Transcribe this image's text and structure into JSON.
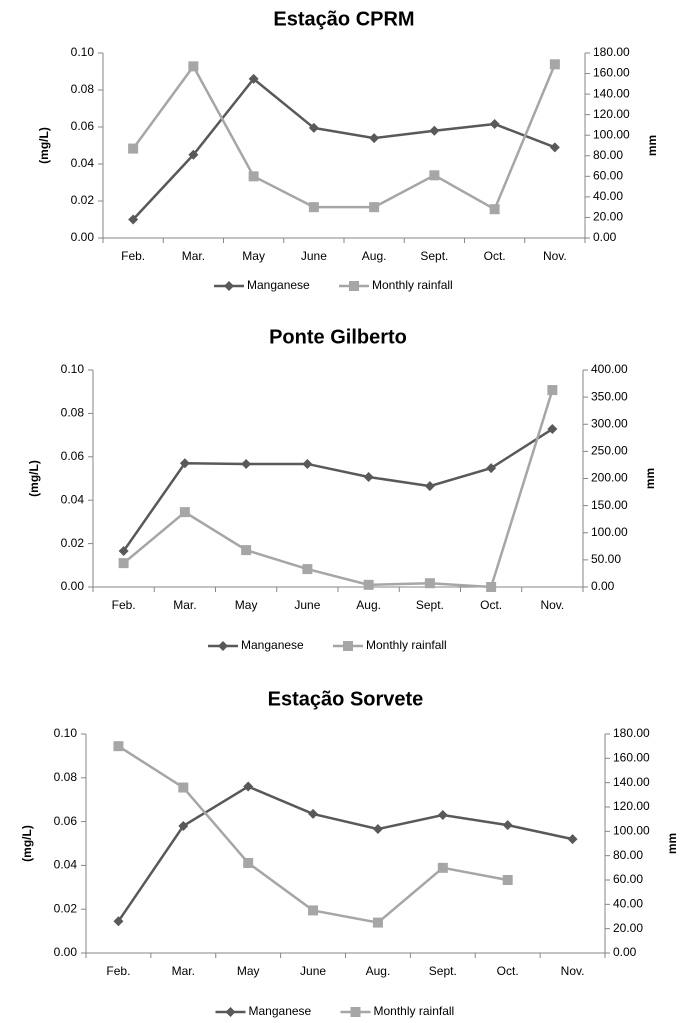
{
  "chart_data": [
    {
      "type": "line",
      "title": "Estação CPRM",
      "categories": [
        "Feb.",
        "Mar.",
        "May",
        "June",
        "Aug.",
        "Sept.",
        "Oct.",
        "Nov."
      ],
      "ylabel": "(mg/L)",
      "y2label": "mm",
      "ylim": [
        0,
        0.1
      ],
      "yticks": [
        {
          "value": 0,
          "label": "0.00"
        },
        {
          "value": 0.02,
          "label": "0.02"
        },
        {
          "value": 0.04,
          "label": "0.04"
        },
        {
          "value": 0.06,
          "label": "0.06"
        },
        {
          "value": 0.08,
          "label": "0.08"
        },
        {
          "value": 0.1,
          "label": "0.10"
        }
      ],
      "y2lim": [
        0,
        180
      ],
      "y2ticks": [
        {
          "value": 0,
          "label": "0.00"
        },
        {
          "value": 20,
          "label": "20.00"
        },
        {
          "value": 40,
          "label": "40.00"
        },
        {
          "value": 60,
          "label": "60.00"
        },
        {
          "value": 80,
          "label": "80.00"
        },
        {
          "value": 100,
          "label": "100.00"
        },
        {
          "value": 120,
          "label": "120.00"
        },
        {
          "value": 140,
          "label": "140.00"
        },
        {
          "value": 160,
          "label": "160.00"
        },
        {
          "value": 180,
          "label": "180.00"
        }
      ],
      "series": [
        {
          "name": "Manganese",
          "color": "#595959",
          "marker": "diamond",
          "axis": "y",
          "values": [
            0.01,
            0.045,
            0.086,
            0.0595,
            0.054,
            0.058,
            0.0616,
            0.049
          ]
        },
        {
          "name": "Monthly rainfall",
          "color": "#a6a6a6",
          "marker": "square",
          "axis": "y2",
          "values": [
            87,
            167,
            60,
            30,
            30,
            61,
            28,
            169
          ]
        }
      ]
    },
    {
      "type": "line",
      "title": "Ponte Gilberto",
      "categories": [
        "Feb.",
        "Mar.",
        "May",
        "June",
        "Aug.",
        "Sept.",
        "Oct.",
        "Nov."
      ],
      "ylabel": "(mg/L)",
      "y2label": "mm",
      "ylim": [
        0,
        0.1
      ],
      "yticks": [
        {
          "value": 0,
          "label": "0.00"
        },
        {
          "value": 0.02,
          "label": "0.02"
        },
        {
          "value": 0.04,
          "label": "0.04"
        },
        {
          "value": 0.06,
          "label": "0.06"
        },
        {
          "value": 0.08,
          "label": "0.08"
        },
        {
          "value": 0.1,
          "label": "0.10"
        }
      ],
      "y2lim": [
        0,
        400
      ],
      "y2ticks": [
        {
          "value": 0,
          "label": "0.00"
        },
        {
          "value": 50,
          "label": "50.00"
        },
        {
          "value": 100,
          "label": "100.00"
        },
        {
          "value": 150,
          "label": "150.00"
        },
        {
          "value": 200,
          "label": "200.00"
        },
        {
          "value": 250,
          "label": "250.00"
        },
        {
          "value": 300,
          "label": "300.00"
        },
        {
          "value": 350,
          "label": "350.00"
        },
        {
          "value": 400,
          "label": "400.00"
        }
      ],
      "series": [
        {
          "name": "Manganese",
          "color": "#595959",
          "marker": "diamond",
          "axis": "y",
          "values": [
            0.0166,
            0.057,
            0.0567,
            0.0567,
            0.0507,
            0.0465,
            0.0548,
            0.0728
          ]
        },
        {
          "name": "Monthly rainfall",
          "color": "#a6a6a6",
          "marker": "square",
          "axis": "y2",
          "values": [
            44,
            138,
            68,
            33,
            4,
            7,
            0,
            363
          ]
        }
      ]
    },
    {
      "type": "line",
      "title": "Estação Sorvete",
      "categories": [
        "Feb.",
        "Mar.",
        "May",
        "June",
        "Aug.",
        "Sept.",
        "Oct.",
        "Nov."
      ],
      "ylabel": "(mg/L)",
      "y2label": "mm",
      "ylim": [
        0,
        0.1
      ],
      "yticks": [
        {
          "value": 0,
          "label": "0.00"
        },
        {
          "value": 0.02,
          "label": "0.02"
        },
        {
          "value": 0.04,
          "label": "0.04"
        },
        {
          "value": 0.06,
          "label": "0.06"
        },
        {
          "value": 0.08,
          "label": "0.08"
        },
        {
          "value": 0.1,
          "label": "0.10"
        }
      ],
      "y2lim": [
        0,
        180
      ],
      "y2ticks": [
        {
          "value": 0,
          "label": "0.00"
        },
        {
          "value": 20,
          "label": "20.00"
        },
        {
          "value": 40,
          "label": "40.00"
        },
        {
          "value": 60,
          "label": "60.00"
        },
        {
          "value": 80,
          "label": "80.00"
        },
        {
          "value": 100,
          "label": "100.00"
        },
        {
          "value": 120,
          "label": "120.00"
        },
        {
          "value": 140,
          "label": "140.00"
        },
        {
          "value": 160,
          "label": "160.00"
        },
        {
          "value": 180,
          "label": "180.00"
        }
      ],
      "series": [
        {
          "name": "Manganese",
          "color": "#595959",
          "marker": "diamond",
          "axis": "y",
          "values": [
            0.0145,
            0.058,
            0.076,
            0.0635,
            0.0566,
            0.063,
            0.0584,
            0.052
          ]
        },
        {
          "name": "Monthly rainfall",
          "color": "#a6a6a6",
          "marker": "square",
          "axis": "y2",
          "values": [
            170,
            136,
            74,
            35,
            25,
            70,
            60,
            null
          ]
        }
      ]
    }
  ]
}
